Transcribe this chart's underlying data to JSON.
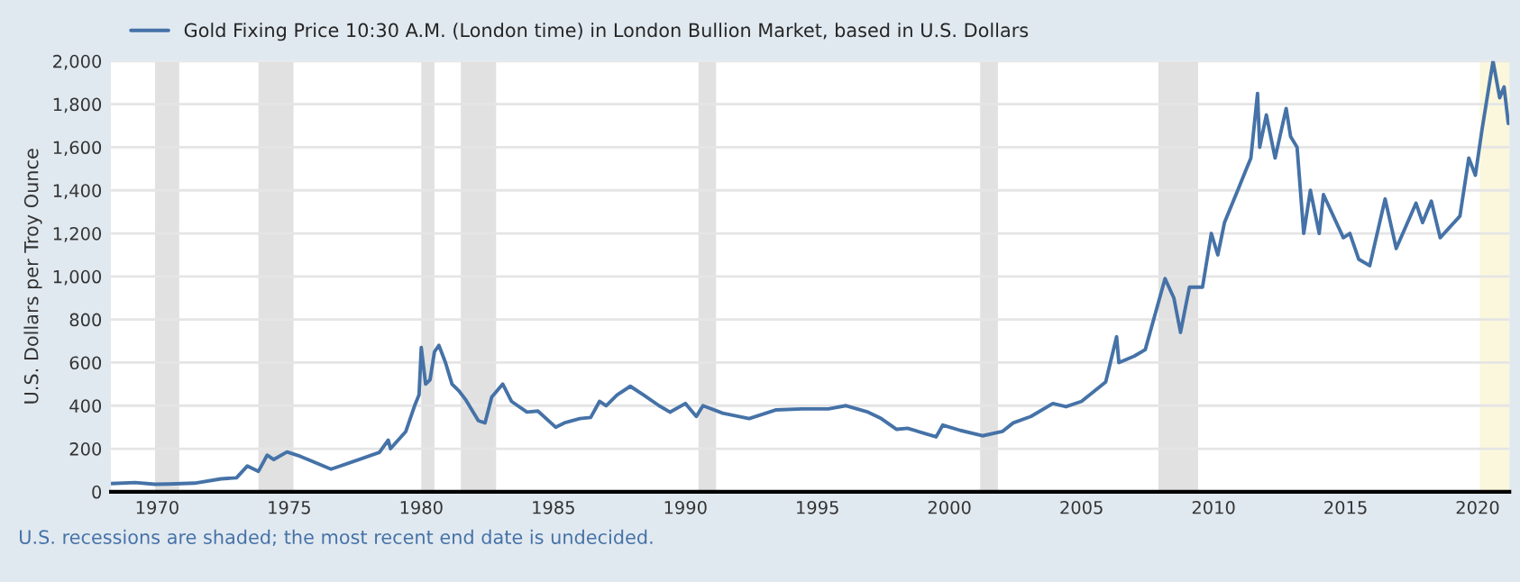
{
  "chart_data": {
    "type": "line",
    "ylabel": "U.S. Dollars per Troy Ounce",
    "x": [
      "1968-04",
      "1969-03",
      "1969-12",
      "1970-06",
      "1971-06",
      "1972-06",
      "1973-01",
      "1973-06",
      "1973-11",
      "1974-03",
      "1974-06",
      "1974-12",
      "1975-06",
      "1976-08",
      "1977-06",
      "1978-06",
      "1978-10",
      "1978-11",
      "1979-06",
      "1979-10",
      "1979-12",
      "1980-01",
      "1980-03",
      "1980-05",
      "1980-07",
      "1980-09",
      "1980-12",
      "1981-03",
      "1981-06",
      "1981-09",
      "1982-03",
      "1982-06",
      "1982-09",
      "1983-02",
      "1983-06",
      "1984-01",
      "1984-06",
      "1985-02",
      "1985-06",
      "1986-01",
      "1986-06",
      "1986-10",
      "1987-01",
      "1987-06",
      "1987-12",
      "1988-06",
      "1989-01",
      "1989-06",
      "1990-01",
      "1990-06",
      "1990-09",
      "1991-06",
      "1992-06",
      "1993-06",
      "1994-06",
      "1995-06",
      "1996-02",
      "1996-12",
      "1997-06",
      "1998-01",
      "1998-06",
      "1999-07",
      "1999-10",
      "2000-06",
      "2001-04",
      "2002-01",
      "2002-06",
      "2003-02",
      "2003-12",
      "2004-06",
      "2005-01",
      "2005-12",
      "2006-05",
      "2006-06",
      "2007-01",
      "2007-06",
      "2008-03",
      "2008-07",
      "2008-10",
      "2009-02",
      "2009-08",
      "2009-12",
      "2010-03",
      "2010-06",
      "2010-12",
      "2011-04",
      "2011-06",
      "2011-09",
      "2011-10",
      "2012-01",
      "2012-05",
      "2012-10",
      "2012-12",
      "2013-03",
      "2013-06",
      "2013-09",
      "2014-01",
      "2014-03",
      "2014-12",
      "2015-03",
      "2015-07",
      "2015-12",
      "2016-07",
      "2016-12",
      "2017-09",
      "2017-12",
      "2018-04",
      "2018-08",
      "2019-05",
      "2019-09",
      "2019-12",
      "2020-03",
      "2020-08",
      "2020-11",
      "2021-01",
      "2021-03"
    ],
    "series": [
      {
        "name": "Gold Fixing Price 10:30 A.M. (London time) in London Bullion Market, based in U.S. Dollars",
        "color": "#4572a7",
        "values": [
          38,
          43,
          35,
          36,
          40,
          60,
          65,
          120,
          95,
          170,
          150,
          185,
          165,
          105,
          140,
          183,
          240,
          200,
          280,
          400,
          450,
          670,
          500,
          520,
          650,
          680,
          600,
          500,
          470,
          430,
          330,
          320,
          440,
          500,
          420,
          370,
          375,
          300,
          320,
          340,
          345,
          420,
          400,
          450,
          490,
          450,
          400,
          370,
          410,
          350,
          400,
          365,
          340,
          380,
          385,
          385,
          400,
          370,
          340,
          290,
          295,
          255,
          310,
          285,
          260,
          280,
          320,
          350,
          410,
          395,
          420,
          510,
          720,
          600,
          630,
          660,
          990,
          900,
          740,
          950,
          950,
          1200,
          1100,
          1250,
          1400,
          1500,
          1550,
          1850,
          1600,
          1750,
          1550,
          1780,
          1650,
          1600,
          1200,
          1400,
          1200,
          1380,
          1180,
          1200,
          1080,
          1050,
          1360,
          1130,
          1340,
          1250,
          1350,
          1180,
          1280,
          1550,
          1470,
          1680,
          2000,
          1830,
          1880,
          1710
        ]
      }
    ],
    "xlim": [
      "1968-04-01",
      "2021-03-15"
    ],
    "xticks": [
      {
        "value": "1970-01-01",
        "label": "1970"
      },
      {
        "value": "1975-01-01",
        "label": "1975"
      },
      {
        "value": "1980-01-01",
        "label": "1980"
      },
      {
        "value": "1985-01-01",
        "label": "1985"
      },
      {
        "value": "1990-01-01",
        "label": "1990"
      },
      {
        "value": "1995-01-01",
        "label": "1995"
      },
      {
        "value": "2000-01-01",
        "label": "2000"
      },
      {
        "value": "2005-01-01",
        "label": "2005"
      },
      {
        "value": "2010-01-01",
        "label": "2010"
      },
      {
        "value": "2015-01-01",
        "label": "2015"
      },
      {
        "value": "2020-01-01",
        "label": "2020"
      }
    ],
    "ylim": [
      0,
      2000
    ],
    "yticks": [
      0,
      200,
      400,
      600,
      800,
      {
        "value": 1000,
        "label": "1,000"
      },
      {
        "value": 1200,
        "label": "1,200"
      },
      {
        "value": 1400,
        "label": "1,400"
      },
      {
        "value": 1600,
        "label": "1,600"
      },
      {
        "value": 1800,
        "label": "1,800"
      },
      {
        "value": 2000,
        "label": "2,000"
      }
    ],
    "bands": [
      {
        "axis": "x",
        "from": "1969-12-01",
        "to": "1970-11-01",
        "color": "#e1e1e1"
      },
      {
        "axis": "x",
        "from": "1973-11-01",
        "to": "1975-03-01",
        "color": "#e1e1e1"
      },
      {
        "axis": "x",
        "from": "1980-01-01",
        "to": "1980-07-01",
        "color": "#e1e1e1"
      },
      {
        "axis": "x",
        "from": "1981-07-01",
        "to": "1982-11-01",
        "color": "#e1e1e1"
      },
      {
        "axis": "x",
        "from": "1990-07-01",
        "to": "1991-03-01",
        "color": "#e1e1e1"
      },
      {
        "axis": "x",
        "from": "2001-03-01",
        "to": "2001-11-01",
        "color": "#e1e1e1"
      },
      {
        "axis": "x",
        "from": "2007-12-01",
        "to": "2009-06-01",
        "color": "#e1e1e1"
      },
      {
        "axis": "x",
        "from": "2020-02-01",
        "to": "2021-03-15",
        "color": "#fbf7dc"
      }
    ],
    "annotations": [
      "U.S. recessions are shaded; the most recent end date is undecided."
    ],
    "grid": "y",
    "legend": "top left",
    "marker": "none",
    "line_style": "solid"
  }
}
